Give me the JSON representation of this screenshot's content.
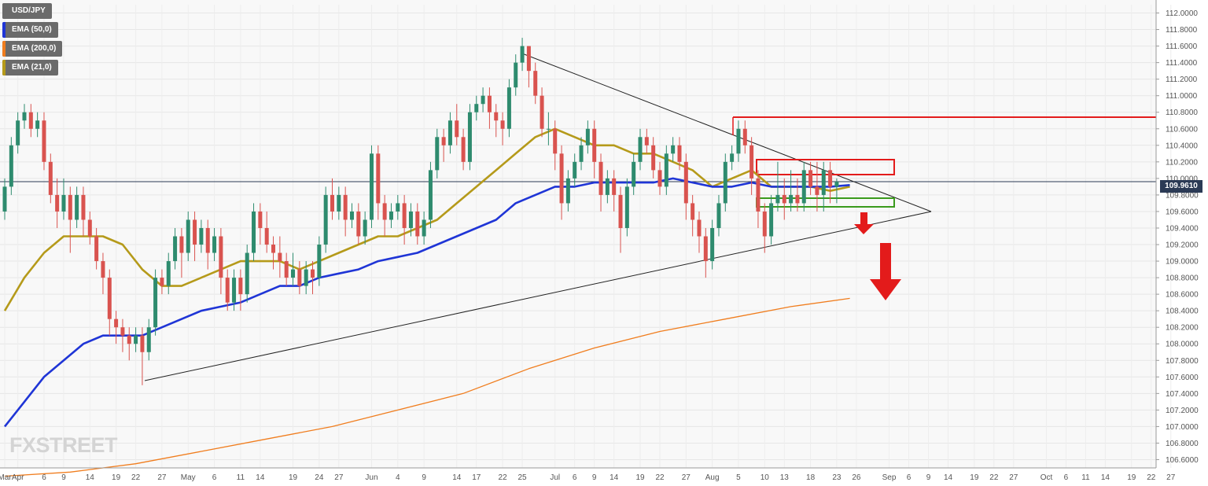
{
  "legend": [
    {
      "label": "USD/JPY",
      "color": "#6b6b6b"
    },
    {
      "label": "EMA (50,0)",
      "color": "#1f35d6"
    },
    {
      "label": "EMA (200,0)",
      "color": "#f07d1e"
    },
    {
      "label": "EMA (21,0)",
      "color": "#b59a1a"
    }
  ],
  "watermark": "FXSTREET",
  "last_price_label": "109.9610",
  "chart_data": {
    "type": "candlestick",
    "symbol": "USD/JPY",
    "title": "",
    "xlabel": "",
    "ylabel": "",
    "ylim": [
      106.5,
      112.1
    ],
    "last_price": 109.961,
    "y_ticks": [
      "112.0000",
      "111.8000",
      "111.6000",
      "111.4000",
      "111.2000",
      "111.0000",
      "110.8000",
      "110.6000",
      "110.4000",
      "110.2000",
      "110.0000",
      "109.8000",
      "109.6000",
      "109.4000",
      "109.2000",
      "109.0000",
      "108.8000",
      "108.6000",
      "108.4000",
      "108.2000",
      "108.0000",
      "107.8000",
      "107.6000",
      "107.4000",
      "107.2000",
      "107.0000",
      "106.8000",
      "106.6000"
    ],
    "x_ticks": [
      "Mar",
      "Apr",
      "6",
      "9",
      "14",
      "19",
      "22",
      "27",
      "May",
      "6",
      "11",
      "14",
      "19",
      "24",
      "27",
      "Jun",
      "4",
      "9",
      "14",
      "17",
      "22",
      "25",
      "Jul",
      "6",
      "9",
      "14",
      "19",
      "22",
      "27",
      "Aug",
      "5",
      "10",
      "13",
      "18",
      "23",
      "26",
      "Sep",
      "6",
      "9",
      "14",
      "19",
      "22",
      "27",
      "Oct",
      "6",
      "11",
      "14",
      "19",
      "22",
      "27"
    ],
    "x_tick_slots": [
      0,
      2,
      6,
      9,
      13,
      17,
      20,
      24,
      28,
      32,
      36,
      39,
      44,
      48,
      51,
      56,
      60,
      64,
      69,
      72,
      76,
      79,
      84,
      87,
      90,
      93,
      97,
      100,
      104,
      108,
      112,
      116,
      119,
      123,
      127,
      130,
      135,
      138,
      141,
      144,
      148,
      151,
      154,
      159,
      162,
      165,
      168,
      172,
      175,
      178
    ],
    "candles": [
      [
        109.6,
        109.9,
        109.5,
        110.0
      ],
      [
        109.9,
        110.4,
        109.8,
        110.5
      ],
      [
        110.4,
        110.7,
        110.3,
        110.8
      ],
      [
        110.7,
        110.8,
        110.6,
        110.9
      ],
      [
        110.8,
        110.6,
        110.5,
        110.9
      ],
      [
        110.6,
        110.7,
        110.5,
        110.8
      ],
      [
        110.7,
        110.2,
        110.1,
        110.8
      ],
      [
        110.2,
        109.8,
        109.7,
        110.3
      ],
      [
        109.8,
        109.6,
        109.4,
        110.0
      ],
      [
        109.6,
        109.8,
        109.5,
        110.0
      ],
      [
        109.8,
        109.5,
        109.1,
        109.9
      ],
      [
        109.5,
        109.8,
        109.4,
        109.9
      ],
      [
        109.8,
        109.5,
        109.3,
        109.9
      ],
      [
        109.5,
        109.3,
        109.2,
        109.6
      ],
      [
        109.3,
        109.0,
        108.9,
        109.4
      ],
      [
        109.0,
        108.8,
        108.6,
        109.1
      ],
      [
        108.8,
        108.3,
        108.1,
        108.9
      ],
      [
        108.3,
        108.2,
        108.0,
        108.4
      ],
      [
        108.2,
        108.1,
        107.9,
        108.3
      ],
      [
        108.1,
        108.0,
        107.8,
        108.2
      ],
      [
        108.0,
        108.1,
        107.9,
        108.2
      ],
      [
        108.1,
        107.9,
        107.5,
        108.2
      ],
      [
        107.9,
        108.2,
        107.8,
        108.3
      ],
      [
        108.2,
        108.8,
        108.1,
        108.9
      ],
      [
        108.8,
        108.7,
        108.6,
        108.9
      ],
      [
        108.7,
        109.0,
        108.6,
        109.1
      ],
      [
        109.0,
        109.3,
        108.9,
        109.4
      ],
      [
        109.3,
        109.1,
        108.8,
        109.4
      ],
      [
        109.1,
        109.5,
        109.0,
        109.6
      ],
      [
        109.5,
        109.2,
        109.0,
        109.6
      ],
      [
        109.2,
        109.4,
        109.1,
        109.5
      ],
      [
        109.4,
        109.1,
        108.9,
        109.5
      ],
      [
        109.1,
        109.3,
        109.0,
        109.4
      ],
      [
        109.3,
        108.8,
        108.6,
        109.4
      ],
      [
        108.8,
        108.5,
        108.4,
        108.9
      ],
      [
        108.5,
        108.8,
        108.4,
        108.9
      ],
      [
        108.8,
        108.6,
        108.4,
        108.9
      ],
      [
        108.6,
        109.1,
        108.5,
        109.2
      ],
      [
        109.1,
        109.6,
        109.0,
        109.7
      ],
      [
        109.6,
        109.4,
        109.2,
        109.7
      ],
      [
        109.4,
        109.2,
        109.1,
        109.6
      ],
      [
        109.2,
        109.1,
        108.9,
        109.3
      ],
      [
        109.1,
        109.0,
        108.8,
        109.3
      ],
      [
        109.0,
        108.8,
        108.7,
        109.1
      ],
      [
        108.8,
        108.9,
        108.7,
        109.1
      ],
      [
        108.9,
        108.7,
        108.6,
        109.0
      ],
      [
        108.7,
        108.9,
        108.6,
        109.0
      ],
      [
        108.9,
        108.8,
        108.6,
        109.0
      ],
      [
        108.8,
        109.2,
        108.7,
        109.3
      ],
      [
        109.2,
        109.8,
        109.1,
        109.9
      ],
      [
        109.8,
        109.6,
        109.5,
        110.0
      ],
      [
        109.6,
        109.8,
        109.5,
        109.9
      ],
      [
        109.8,
        109.5,
        109.3,
        109.9
      ],
      [
        109.5,
        109.6,
        109.4,
        109.7
      ],
      [
        109.6,
        109.3,
        109.2,
        109.7
      ],
      [
        109.3,
        109.5,
        109.2,
        109.6
      ],
      [
        109.5,
        110.3,
        109.4,
        110.4
      ],
      [
        110.3,
        109.7,
        109.5,
        110.4
      ],
      [
        109.7,
        109.5,
        109.3,
        109.8
      ],
      [
        109.5,
        109.6,
        109.4,
        109.7
      ],
      [
        109.6,
        109.7,
        109.5,
        109.8
      ],
      [
        109.7,
        109.4,
        109.2,
        109.8
      ],
      [
        109.4,
        109.6,
        109.3,
        109.7
      ],
      [
        109.6,
        109.3,
        109.2,
        109.7
      ],
      [
        109.3,
        109.5,
        109.2,
        109.6
      ],
      [
        109.5,
        110.1,
        109.4,
        110.2
      ],
      [
        110.1,
        110.5,
        110.0,
        110.6
      ],
      [
        110.5,
        110.4,
        110.2,
        110.6
      ],
      [
        110.4,
        110.7,
        110.3,
        110.8
      ],
      [
        110.7,
        110.5,
        110.4,
        110.9
      ],
      [
        110.5,
        110.2,
        110.1,
        110.6
      ],
      [
        110.2,
        110.8,
        110.1,
        110.9
      ],
      [
        110.8,
        110.9,
        110.7,
        111.0
      ],
      [
        110.9,
        111.0,
        110.8,
        111.1
      ],
      [
        111.0,
        110.8,
        110.6,
        111.1
      ],
      [
        110.8,
        110.7,
        110.5,
        110.9
      ],
      [
        110.7,
        110.6,
        110.4,
        110.8
      ],
      [
        110.6,
        111.1,
        110.5,
        111.2
      ],
      [
        111.1,
        111.4,
        111.0,
        111.5
      ],
      [
        111.4,
        111.6,
        111.3,
        111.7
      ],
      [
        111.6,
        111.3,
        111.1,
        111.6
      ],
      [
        111.3,
        111.0,
        110.9,
        111.4
      ],
      [
        111.0,
        110.6,
        110.5,
        111.1
      ],
      [
        110.6,
        110.6,
        110.4,
        110.8
      ],
      [
        110.6,
        110.3,
        110.1,
        110.7
      ],
      [
        110.3,
        109.7,
        109.5,
        110.4
      ],
      [
        109.7,
        110.0,
        109.6,
        110.1
      ],
      [
        110.0,
        110.2,
        109.9,
        110.3
      ],
      [
        110.2,
        110.4,
        110.1,
        110.5
      ],
      [
        110.4,
        110.6,
        110.3,
        110.7
      ],
      [
        110.6,
        110.2,
        110.0,
        110.7
      ],
      [
        110.2,
        109.8,
        109.6,
        110.3
      ],
      [
        109.8,
        110.0,
        109.7,
        110.1
      ],
      [
        110.0,
        109.8,
        109.6,
        110.1
      ],
      [
        109.8,
        109.4,
        109.1,
        109.9
      ],
      [
        109.4,
        109.9,
        109.3,
        110.0
      ],
      [
        109.9,
        110.2,
        109.8,
        110.3
      ],
      [
        110.2,
        110.5,
        110.1,
        110.6
      ],
      [
        110.5,
        110.4,
        110.3,
        110.6
      ],
      [
        110.4,
        110.1,
        110.0,
        110.5
      ],
      [
        110.1,
        109.9,
        109.8,
        110.2
      ],
      [
        109.9,
        110.3,
        109.8,
        110.4
      ],
      [
        110.3,
        110.4,
        110.2,
        110.5
      ],
      [
        110.4,
        110.2,
        110.1,
        110.5
      ],
      [
        110.2,
        109.7,
        109.5,
        110.3
      ],
      [
        109.7,
        109.5,
        109.3,
        109.8
      ],
      [
        109.5,
        109.3,
        109.1,
        109.6
      ],
      [
        109.3,
        109.0,
        108.8,
        109.4
      ],
      [
        109.0,
        109.4,
        108.9,
        109.5
      ],
      [
        109.4,
        109.7,
        109.3,
        109.8
      ],
      [
        109.7,
        110.2,
        109.6,
        110.3
      ],
      [
        110.2,
        110.3,
        110.1,
        110.4
      ],
      [
        110.3,
        110.6,
        110.2,
        110.7
      ],
      [
        110.6,
        110.4,
        110.3,
        110.7
      ],
      [
        110.4,
        110.0,
        109.8,
        110.5
      ],
      [
        110.0,
        109.6,
        109.4,
        110.1
      ],
      [
        109.6,
        109.3,
        109.1,
        109.7
      ],
      [
        109.3,
        109.7,
        109.2,
        109.8
      ],
      [
        109.7,
        109.8,
        109.6,
        110.2
      ],
      [
        109.8,
        109.7,
        109.5,
        110.0
      ],
      [
        109.7,
        109.8,
        109.6,
        110.1
      ],
      [
        109.8,
        109.7,
        109.6,
        110.0
      ],
      [
        109.7,
        110.1,
        109.6,
        110.2
      ],
      [
        110.1,
        109.9,
        109.8,
        110.2
      ],
      [
        109.9,
        109.8,
        109.6,
        110.2
      ],
      [
        109.8,
        110.1,
        109.6,
        110.2
      ],
      [
        110.1,
        109.9,
        109.7,
        110.2
      ],
      [
        109.9,
        109.96,
        109.7,
        110.0
      ]
    ],
    "series": [
      {
        "name": "EMA (21,0)",
        "color": "#b59a1a",
        "points": [
          [
            0,
            108.4
          ],
          [
            3,
            108.8
          ],
          [
            6,
            109.1
          ],
          [
            9,
            109.3
          ],
          [
            12,
            109.3
          ],
          [
            15,
            109.3
          ],
          [
            18,
            109.2
          ],
          [
            21,
            108.9
          ],
          [
            24,
            108.7
          ],
          [
            27,
            108.7
          ],
          [
            30,
            108.8
          ],
          [
            33,
            108.9
          ],
          [
            36,
            109.0
          ],
          [
            39,
            109.0
          ],
          [
            42,
            109.0
          ],
          [
            45,
            108.9
          ],
          [
            48,
            109.0
          ],
          [
            51,
            109.1
          ],
          [
            54,
            109.2
          ],
          [
            57,
            109.3
          ],
          [
            60,
            109.3
          ],
          [
            63,
            109.4
          ],
          [
            66,
            109.5
          ],
          [
            69,
            109.7
          ],
          [
            72,
            109.9
          ],
          [
            75,
            110.1
          ],
          [
            78,
            110.3
          ],
          [
            81,
            110.5
          ],
          [
            84,
            110.6
          ],
          [
            87,
            110.5
          ],
          [
            90,
            110.4
          ],
          [
            93,
            110.4
          ],
          [
            96,
            110.3
          ],
          [
            99,
            110.3
          ],
          [
            102,
            110.2
          ],
          [
            105,
            110.1
          ],
          [
            108,
            109.9
          ],
          [
            111,
            110.0
          ],
          [
            114,
            110.1
          ],
          [
            117,
            109.9
          ],
          [
            120,
            109.9
          ],
          [
            123,
            109.9
          ],
          [
            126,
            109.85
          ],
          [
            129,
            109.9
          ]
        ]
      },
      {
        "name": "EMA (50,0)",
        "color": "#1f35d6",
        "points": [
          [
            0,
            107.0
          ],
          [
            3,
            107.3
          ],
          [
            6,
            107.6
          ],
          [
            9,
            107.8
          ],
          [
            12,
            108.0
          ],
          [
            15,
            108.1
          ],
          [
            18,
            108.1
          ],
          [
            21,
            108.1
          ],
          [
            24,
            108.2
          ],
          [
            27,
            108.3
          ],
          [
            30,
            108.4
          ],
          [
            33,
            108.45
          ],
          [
            36,
            108.5
          ],
          [
            39,
            108.6
          ],
          [
            42,
            108.7
          ],
          [
            45,
            108.7
          ],
          [
            48,
            108.8
          ],
          [
            51,
            108.85
          ],
          [
            54,
            108.9
          ],
          [
            57,
            109.0
          ],
          [
            60,
            109.05
          ],
          [
            63,
            109.1
          ],
          [
            66,
            109.2
          ],
          [
            69,
            109.3
          ],
          [
            72,
            109.4
          ],
          [
            75,
            109.5
          ],
          [
            78,
            109.7
          ],
          [
            81,
            109.8
          ],
          [
            84,
            109.9
          ],
          [
            87,
            109.9
          ],
          [
            90,
            109.95
          ],
          [
            93,
            109.95
          ],
          [
            96,
            109.95
          ],
          [
            99,
            109.95
          ],
          [
            102,
            110.0
          ],
          [
            105,
            109.95
          ],
          [
            108,
            109.9
          ],
          [
            111,
            109.9
          ],
          [
            114,
            109.95
          ],
          [
            117,
            109.9
          ],
          [
            120,
            109.9
          ],
          [
            123,
            109.9
          ],
          [
            126,
            109.9
          ],
          [
            129,
            109.92
          ]
        ]
      },
      {
        "name": "EMA (200,0)",
        "color": "#f07d1e",
        "points": [
          [
            0,
            106.4
          ],
          [
            10,
            106.45
          ],
          [
            20,
            106.55
          ],
          [
            30,
            106.7
          ],
          [
            40,
            106.85
          ],
          [
            50,
            107.0
          ],
          [
            60,
            107.2
          ],
          [
            70,
            107.4
          ],
          [
            80,
            107.7
          ],
          [
            90,
            107.95
          ],
          [
            100,
            108.15
          ],
          [
            110,
            108.3
          ],
          [
            120,
            108.45
          ],
          [
            129,
            108.55
          ]
        ]
      }
    ]
  }
}
